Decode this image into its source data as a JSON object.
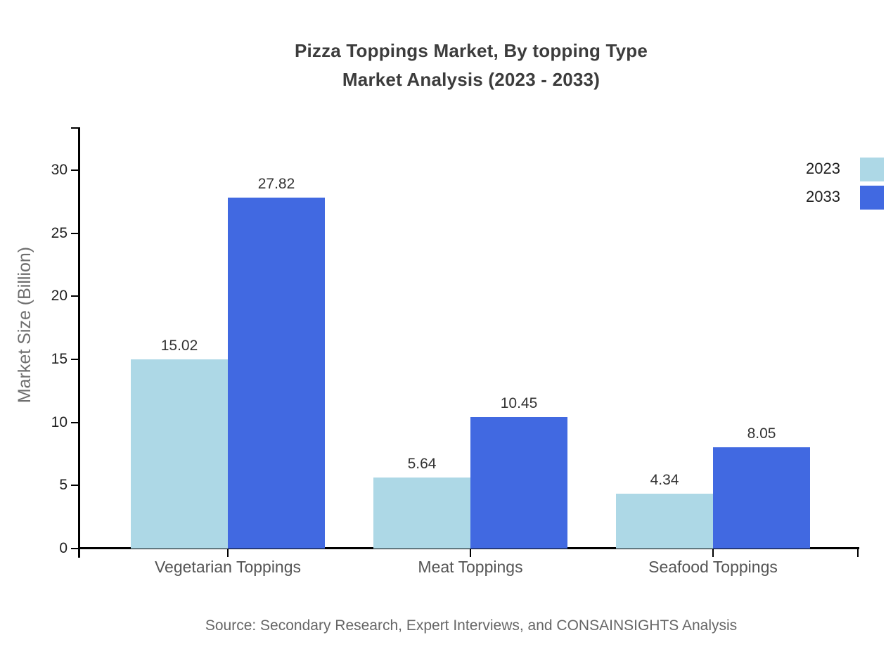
{
  "title": {
    "line1": "Pizza Toppings Market, By topping Type",
    "line2": "Market Analysis (2023 - 2033)"
  },
  "axis": {
    "y_label": "Market Size (Billion)",
    "y_ticks": [
      0,
      5,
      10,
      15,
      20,
      25,
      30
    ]
  },
  "legend": [
    {
      "label": "2023",
      "color": "#ADD8E6"
    },
    {
      "label": "2033",
      "color": "#4169E1"
    }
  ],
  "source": "Source: Secondary Research, Expert Interviews, and CONSAINSIGHTS Analysis",
  "colors": {
    "series_2023": "#ADD8E6",
    "series_2033": "#4169E1",
    "axis": "#000000",
    "title_text": "#3c3c3c",
    "muted_text": "#6e6e6e"
  },
  "chart_data": {
    "type": "bar",
    "title": "Pizza Toppings Market, By topping Type Market Analysis (2023 - 2033)",
    "categories": [
      "Vegetarian Toppings",
      "Meat Toppings",
      "Seafood Toppings"
    ],
    "series": [
      {
        "name": "2023",
        "color": "#ADD8E6",
        "values": [
          15.02,
          5.64,
          4.34
        ]
      },
      {
        "name": "2033",
        "color": "#4169E1",
        "values": [
          27.82,
          10.45,
          8.05
        ]
      }
    ],
    "xlabel": "",
    "ylabel": "Market Size (Billion)",
    "ylim": [
      0,
      33.4
    ],
    "y_tick_step": 5,
    "grid": false,
    "legend_position": "top-right",
    "value_labels": true
  }
}
